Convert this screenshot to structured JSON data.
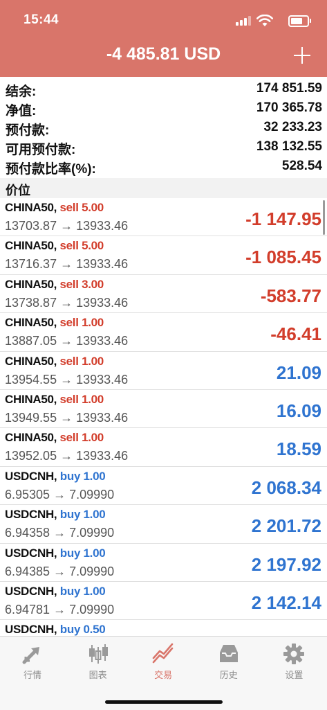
{
  "status": {
    "time": "15:44"
  },
  "header": {
    "title": "-4 485.81 USD"
  },
  "summary": [
    {
      "label": "结余:",
      "value": "174 851.59"
    },
    {
      "label": "净值:",
      "value": "170 365.78"
    },
    {
      "label": "预付款:",
      "value": "32 233.23"
    },
    {
      "label": "可用预付款:",
      "value": "138 132.55"
    },
    {
      "label": "预付款比率(%):",
      "value": "528.54"
    }
  ],
  "section": {
    "title": "价位"
  },
  "positions": [
    {
      "symbol": "CHINA50,",
      "side": "sell",
      "volume": "5.00",
      "open": "13703.87",
      "current": "13933.46",
      "profit": "-1 147.95"
    },
    {
      "symbol": "CHINA50,",
      "side": "sell",
      "volume": "5.00",
      "open": "13716.37",
      "current": "13933.46",
      "profit": "-1 085.45"
    },
    {
      "symbol": "CHINA50,",
      "side": "sell",
      "volume": "3.00",
      "open": "13738.87",
      "current": "13933.46",
      "profit": "-583.77"
    },
    {
      "symbol": "CHINA50,",
      "side": "sell",
      "volume": "1.00",
      "open": "13887.05",
      "current": "13933.46",
      "profit": "-46.41"
    },
    {
      "symbol": "CHINA50,",
      "side": "sell",
      "volume": "1.00",
      "open": "13954.55",
      "current": "13933.46",
      "profit": "21.09"
    },
    {
      "symbol": "CHINA50,",
      "side": "sell",
      "volume": "1.00",
      "open": "13949.55",
      "current": "13933.46",
      "profit": "16.09"
    },
    {
      "symbol": "CHINA50,",
      "side": "sell",
      "volume": "1.00",
      "open": "13952.05",
      "current": "13933.46",
      "profit": "18.59"
    },
    {
      "symbol": "USDCNH,",
      "side": "buy",
      "volume": "1.00",
      "open": "6.95305",
      "current": "7.09990",
      "profit": "2 068.34"
    },
    {
      "symbol": "USDCNH,",
      "side": "buy",
      "volume": "1.00",
      "open": "6.94358",
      "current": "7.09990",
      "profit": "2 201.72"
    },
    {
      "symbol": "USDCNH,",
      "side": "buy",
      "volume": "1.00",
      "open": "6.94385",
      "current": "7.09990",
      "profit": "2 197.92"
    },
    {
      "symbol": "USDCNH,",
      "side": "buy",
      "volume": "1.00",
      "open": "6.94781",
      "current": "7.09990",
      "profit": "2 142.14"
    },
    {
      "symbol": "USDCNH,",
      "side": "buy",
      "volume": "0.50",
      "open": "",
      "current": "",
      "profit": ""
    }
  ],
  "tabs": [
    {
      "id": "quotes",
      "label": "行情",
      "icon": "quotes-arrows-icon",
      "active": false
    },
    {
      "id": "chart",
      "label": "图表",
      "icon": "candlestick-icon",
      "active": false
    },
    {
      "id": "trade",
      "label": "交易",
      "icon": "trade-line-icon",
      "active": true
    },
    {
      "id": "history",
      "label": "历史",
      "icon": "inbox-tray-icon",
      "active": false
    },
    {
      "id": "settings",
      "label": "设置",
      "icon": "gear-icon",
      "active": false
    }
  ],
  "colors": {
    "header": "#d9756a",
    "loss": "#d23d2b",
    "profit": "#2f74d0",
    "active_tab": "#d9756a"
  }
}
